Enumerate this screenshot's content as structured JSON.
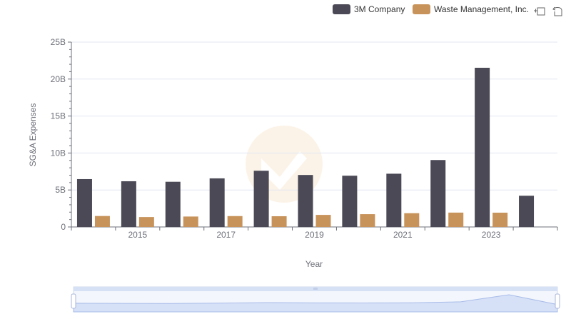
{
  "chart_data": {
    "type": "bar",
    "title": "",
    "xlabel": "Year",
    "ylabel": "SG&A Expenses",
    "ylim": [
      0,
      25000000000
    ],
    "y_ticks": [
      0,
      5000000000,
      10000000000,
      15000000000,
      20000000000,
      25000000000
    ],
    "y_tick_labels": [
      "0",
      "5B",
      "10B",
      "15B",
      "20B",
      "25B"
    ],
    "categories": [
      "2014",
      "2015",
      "2016",
      "2017",
      "2018",
      "2019",
      "2020",
      "2021",
      "2022",
      "2023",
      "2024"
    ],
    "x_tick_labels": [
      "2015",
      "2017",
      "2019",
      "2021",
      "2023"
    ],
    "x_tick_categories": [
      "2015",
      "2017",
      "2019",
      "2021",
      "2023"
    ],
    "series": [
      {
        "name": "3M Company",
        "color": "#4a4955",
        "values": [
          6470000000,
          6180000000,
          6110000000,
          6570000000,
          7600000000,
          7030000000,
          6930000000,
          7200000000,
          9050000000,
          21530000000,
          4220000000
        ]
      },
      {
        "name": "Waste Management, Inc.",
        "color": "#c8935a",
        "values": [
          1480000000,
          1340000000,
          1410000000,
          1470000000,
          1450000000,
          1630000000,
          1730000000,
          1860000000,
          1940000000,
          1930000000,
          null
        ]
      }
    ],
    "legend_position": "top-right",
    "grid": true
  },
  "toolbar": {
    "zoom_icon": "zoom-select-icon",
    "reset_icon": "zoom-reset-icon"
  }
}
